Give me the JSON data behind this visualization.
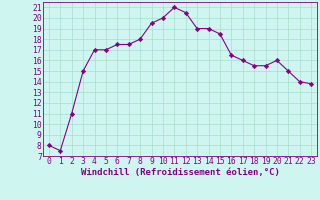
{
  "x": [
    0,
    1,
    2,
    3,
    4,
    5,
    6,
    7,
    8,
    9,
    10,
    11,
    12,
    13,
    14,
    15,
    16,
    17,
    18,
    19,
    20,
    21,
    22,
    23
  ],
  "y": [
    8,
    7.5,
    11,
    15,
    17,
    17,
    17.5,
    17.5,
    18,
    19.5,
    20,
    21,
    20.5,
    19,
    19,
    18.5,
    16.5,
    16,
    15.5,
    15.5,
    16,
    15,
    14,
    13.8
  ],
  "line_color": "#880088",
  "marker": "D",
  "marker_size": 2.2,
  "bg_color": "#cef5f0",
  "grid_color": "#aaddcc",
  "xlabel": "Windchill (Refroidissement éolien,°C)",
  "xlabel_color": "#880088",
  "xlabel_fontsize": 6.5,
  "ylabel_ticks": [
    7,
    8,
    9,
    10,
    11,
    12,
    13,
    14,
    15,
    16,
    17,
    18,
    19,
    20,
    21
  ],
  "xlim": [
    -0.5,
    23.5
  ],
  "ylim": [
    7,
    21.5
  ],
  "tick_fontsize": 5.8,
  "tick_color": "#880088",
  "axis_color": "#880088"
}
